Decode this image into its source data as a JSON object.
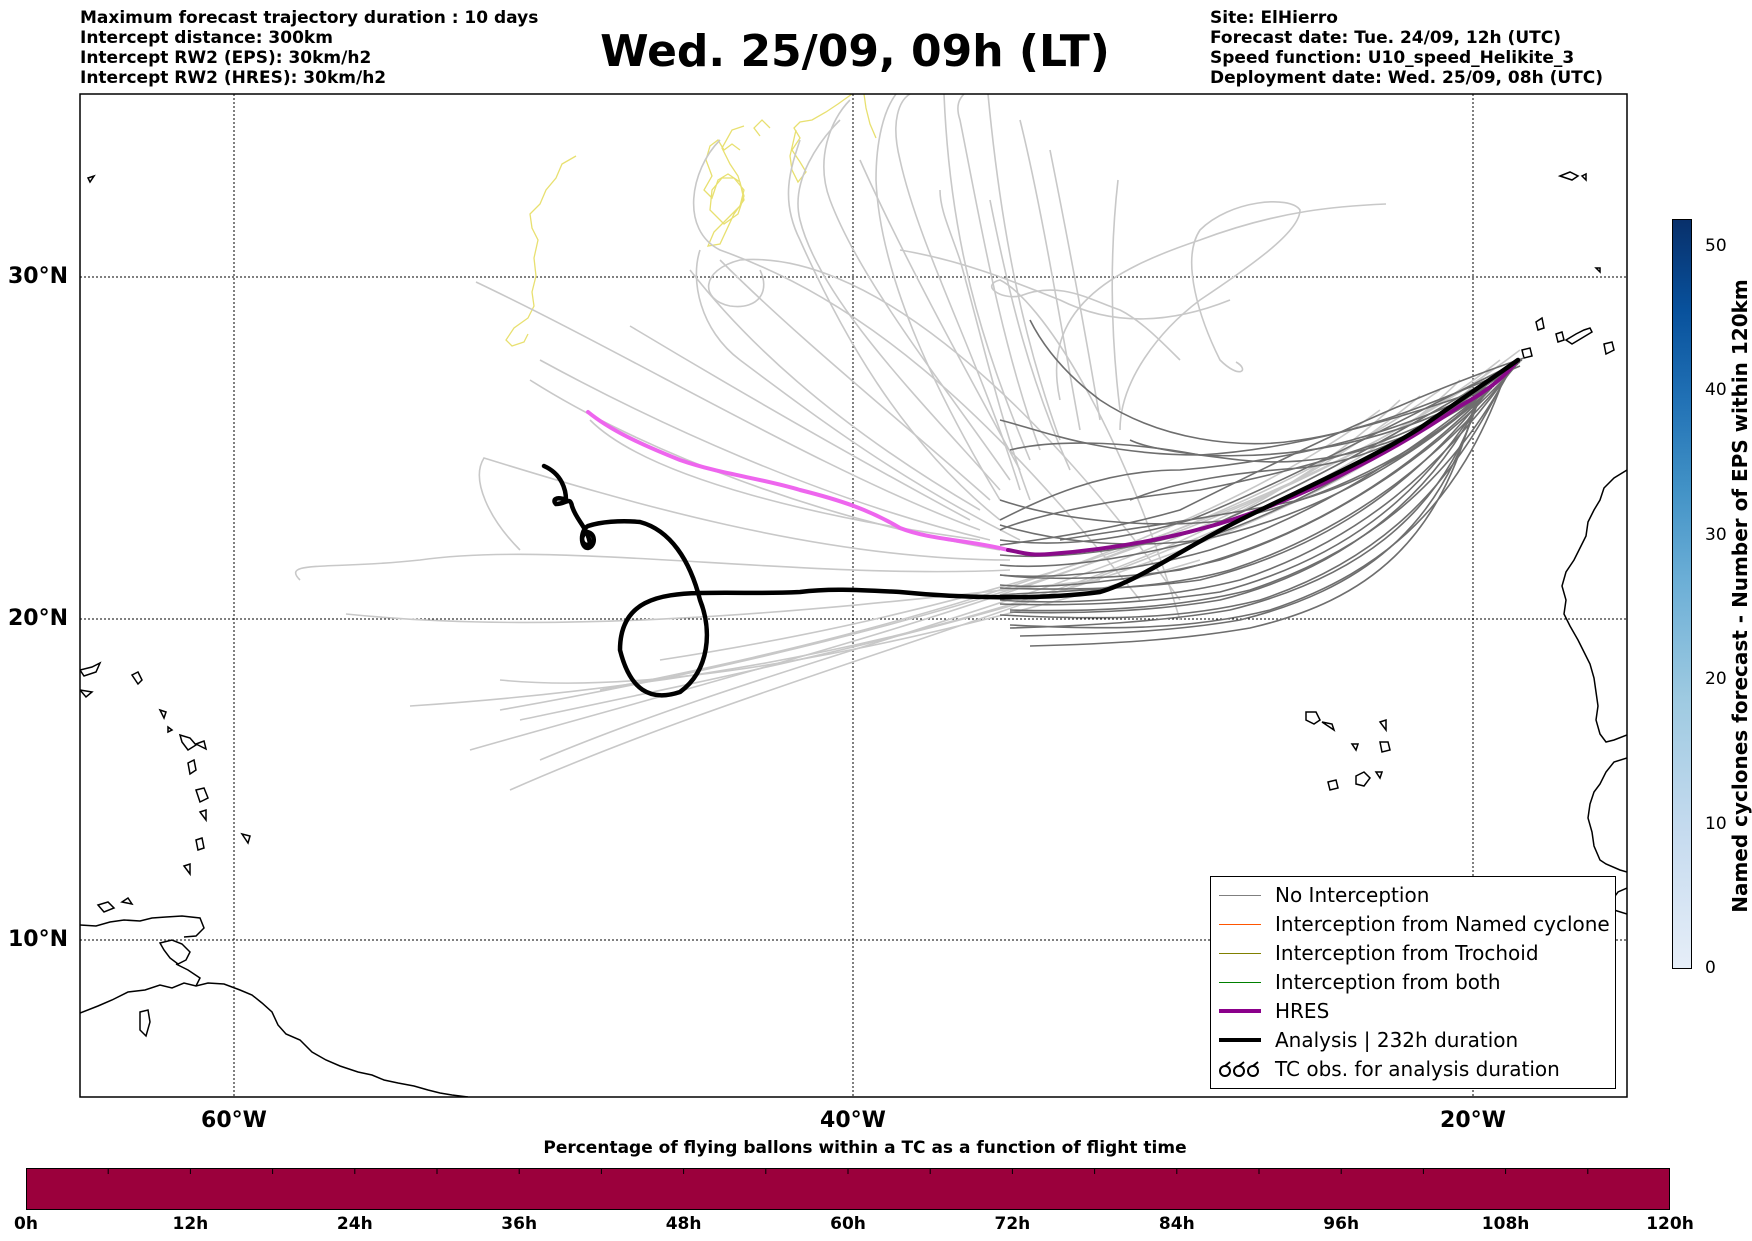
{
  "header_left": [
    "Maximum forecast trajectory duration : 10 days",
    "Intercept distance: 300km",
    "Intercept RW2 (EPS):  30km/h2",
    "Intercept RW2 (HRES): 30km/h2"
  ],
  "title": "Wed. 25/09, 09h (LT)",
  "header_right": [
    "Site: ElHierro",
    "Forecast date: Tue. 24/09, 12h (UTC)",
    "Speed function: U10_speed_Helikite_3",
    "Deployment date: Wed. 25/09, 08h (UTC)"
  ],
  "map": {
    "lat_labels": [
      "30°N",
      "20°N",
      "10°N"
    ],
    "lon_labels": [
      "60°W",
      "40°W",
      "20°W"
    ],
    "colors": {
      "eps_far": "#c8c8c8",
      "eps_near": "#6e6e6e",
      "hres_early": "#ee66ee",
      "hres_late": "#8a0a8a",
      "analysis": "#000000",
      "named_cyclone": "#e8e070"
    }
  },
  "legend": {
    "items": [
      {
        "label": "No Interception",
        "color": "#7f7f7f",
        "style": "thin"
      },
      {
        "label": "Interception from Named cyclone",
        "color": "#ff5500",
        "style": "thin"
      },
      {
        "label": "Interception from Trochoid",
        "color": "#808000",
        "style": "thin"
      },
      {
        "label": "Interception from both",
        "color": "#008000",
        "style": "thin"
      },
      {
        "label": "HRES",
        "color": "#8b008b",
        "style": "thick"
      },
      {
        "label": "Analysis | 232h duration",
        "color": "#000000",
        "style": "thick"
      },
      {
        "label": "TC obs. for analysis duration",
        "color": "#000000",
        "style": "symbol"
      }
    ]
  },
  "colorbar": {
    "label": "Named cyclones forecast - Number of EPS within 120km",
    "ticks": [
      "0",
      "10",
      "20",
      "30",
      "40",
      "50"
    ],
    "range": [
      0,
      52
    ]
  },
  "flight_bar": {
    "title": "Percentage of flying ballons within a TC as a function of flight time",
    "ticks": [
      "0h",
      "12h",
      "24h",
      "36h",
      "48h",
      "60h",
      "72h",
      "84h",
      "96h",
      "108h",
      "120h"
    ],
    "fill_color": "#9b003c",
    "percent_in_tc": 0
  }
}
